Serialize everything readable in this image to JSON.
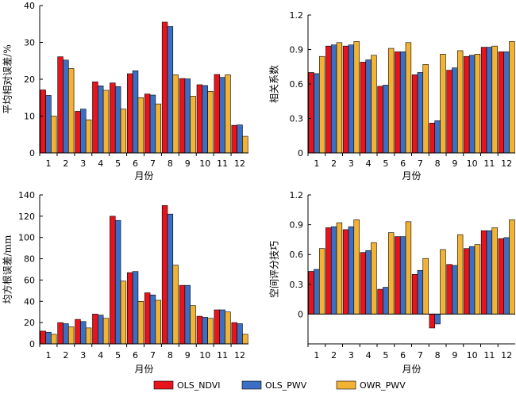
{
  "colors": {
    "OLS_NDVI": "#e8141c",
    "OLS_PWV": "#3b6fc4",
    "OWR_PWV": "#f2b233",
    "stroke": "#000000"
  },
  "legend": {
    "placement": "bottom-center",
    "items": [
      "OLS_NDVI",
      "OLS_PWV",
      "OWR_PWV"
    ]
  },
  "chart_data": [
    {
      "type": "bar",
      "xlabel": "月份",
      "ylabel": "平均相对误差/%",
      "ylim": [
        0,
        40
      ],
      "yticks": [
        0,
        10,
        20,
        30,
        40
      ],
      "categories": [
        "1",
        "2",
        "3",
        "4",
        "5",
        "6",
        "7",
        "8",
        "9",
        "10",
        "11",
        "12"
      ],
      "series": [
        {
          "name": "OLS_NDVI",
          "values": [
            17.1,
            26.1,
            11.3,
            19.3,
            19.0,
            21.5,
            16.0,
            35.5,
            20.2,
            18.5,
            21.3,
            7.5
          ]
        },
        {
          "name": "OLS_PWV",
          "values": [
            15.6,
            25.2,
            11.9,
            18.2,
            18.0,
            22.3,
            15.7,
            34.3,
            20.1,
            18.3,
            20.5,
            7.6
          ]
        },
        {
          "name": "OWR_PWV",
          "values": [
            10.0,
            22.9,
            9.0,
            17.0,
            11.9,
            15.0,
            13.3,
            21.2,
            15.4,
            16.7,
            21.2,
            4.5
          ]
        }
      ]
    },
    {
      "type": "bar",
      "xlabel": "月份",
      "ylabel": "相关系数",
      "ylim": [
        0,
        1.2
      ],
      "yticks": [
        0,
        0.3,
        0.6,
        0.9,
        1.2
      ],
      "categories": [
        "1",
        "2",
        "3",
        "4",
        "5",
        "6",
        "7",
        "8",
        "9",
        "10",
        "11",
        "12"
      ],
      "series": [
        {
          "name": "OLS_NDVI",
          "values": [
            0.7,
            0.93,
            0.93,
            0.79,
            0.58,
            0.88,
            0.68,
            0.26,
            0.72,
            0.84,
            0.92,
            0.88
          ]
        },
        {
          "name": "OLS_PWV",
          "values": [
            0.69,
            0.94,
            0.94,
            0.81,
            0.59,
            0.88,
            0.7,
            0.28,
            0.74,
            0.85,
            0.92,
            0.88
          ]
        },
        {
          "name": "OWR_PWV",
          "values": [
            0.84,
            0.96,
            0.97,
            0.85,
            0.91,
            0.96,
            0.77,
            0.86,
            0.89,
            0.86,
            0.93,
            0.97
          ]
        }
      ]
    },
    {
      "type": "bar",
      "xlabel": "月份",
      "ylabel": "均方根误差/mm",
      "ylim": [
        0,
        140
      ],
      "yticks": [
        0,
        20,
        40,
        60,
        80,
        100,
        120,
        140
      ],
      "categories": [
        "1",
        "2",
        "3",
        "4",
        "5",
        "6",
        "7",
        "8",
        "9",
        "10",
        "11",
        "12"
      ],
      "series": [
        {
          "name": "OLS_NDVI",
          "values": [
            12,
            20,
            23,
            28,
            120,
            67,
            48,
            130,
            55,
            26,
            32,
            20
          ]
        },
        {
          "name": "OLS_PWV",
          "values": [
            11,
            19,
            21,
            27,
            116,
            68,
            46,
            122,
            55,
            25,
            32,
            19
          ]
        },
        {
          "name": "OWR_PWV",
          "values": [
            9,
            16,
            15,
            24,
            59,
            40,
            41,
            74,
            36,
            24,
            30,
            9
          ]
        }
      ]
    },
    {
      "type": "bar",
      "xlabel": "月份",
      "ylabel": "空间评分技巧",
      "ylim": [
        -0.3,
        1.2
      ],
      "yticks": [
        0,
        0.3,
        0.6,
        0.9,
        1.2
      ],
      "categories": [
        "1",
        "2",
        "3",
        "4",
        "5",
        "6",
        "7",
        "8",
        "9",
        "10",
        "11",
        "12"
      ],
      "series": [
        {
          "name": "OLS_NDVI",
          "values": [
            0.43,
            0.87,
            0.85,
            0.62,
            0.25,
            0.78,
            0.4,
            -0.14,
            0.5,
            0.66,
            0.84,
            0.76
          ]
        },
        {
          "name": "OLS_PWV",
          "values": [
            0.45,
            0.88,
            0.88,
            0.64,
            0.27,
            0.78,
            0.44,
            -0.1,
            0.49,
            0.68,
            0.84,
            0.77
          ]
        },
        {
          "name": "OWR_PWV",
          "values": [
            0.66,
            0.92,
            0.95,
            0.72,
            0.82,
            0.93,
            0.56,
            0.65,
            0.8,
            0.7,
            0.87,
            0.95
          ]
        }
      ]
    }
  ]
}
